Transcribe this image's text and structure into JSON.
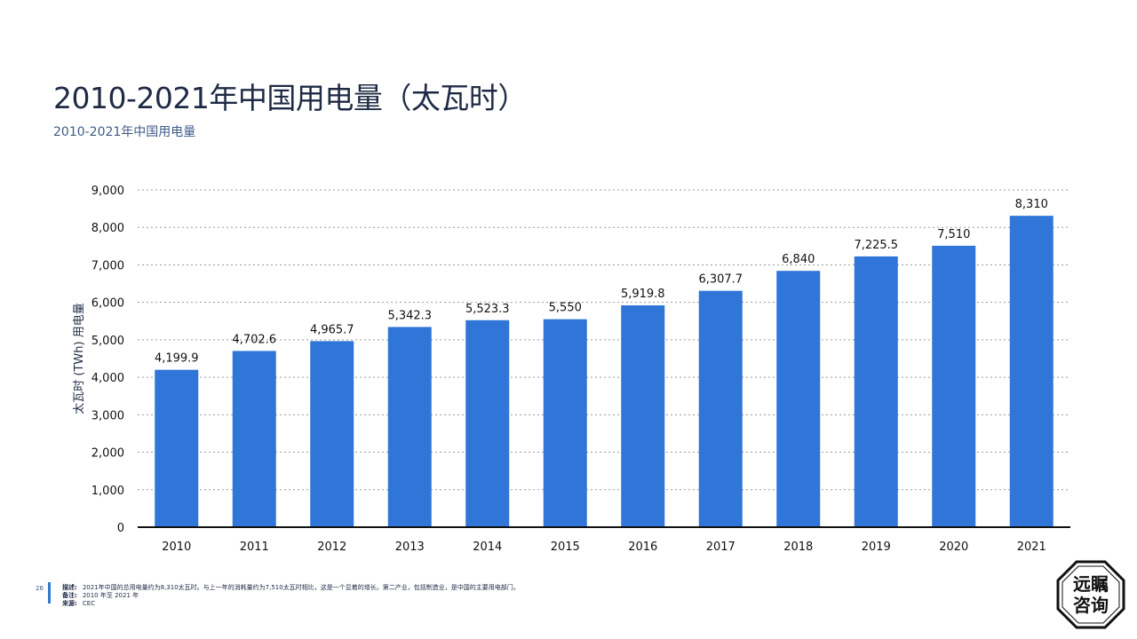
{
  "title": "2010-2021年中国用电量（太瓦时）",
  "subtitle": "2010-2021年中国用电量",
  "colors": {
    "bar": "#2f76d8",
    "text": "#1f2a44",
    "accent": "#3378d4"
  },
  "chart_data": {
    "type": "bar",
    "categories": [
      "2010",
      "2011",
      "2012",
      "2013",
      "2014",
      "2015",
      "2016",
      "2017",
      "2018",
      "2019",
      "2020",
      "2021"
    ],
    "values": [
      4199.9,
      4702.6,
      4965.7,
      5342.3,
      5523.3,
      5550,
      5919.8,
      6307.7,
      6840,
      7225.5,
      7510,
      8310
    ],
    "value_labels": [
      "4,199.9",
      "4,702.6",
      "4,965.7",
      "5,342.3",
      "5,523.3",
      "5,550",
      "5,919.8",
      "6,307.7",
      "6,840",
      "7,225.5",
      "7,510",
      "8,310"
    ],
    "ylabel": "太瓦时 (TWh) 用电量",
    "ylim": [
      0,
      9000
    ],
    "yticks": [
      0,
      1000,
      2000,
      3000,
      4000,
      5000,
      6000,
      7000,
      8000,
      9000
    ],
    "ytick_labels": [
      "0",
      "1,000",
      "2,000",
      "3,000",
      "4,000",
      "5,000",
      "6,000",
      "7,000",
      "8,000",
      "9,000"
    ],
    "grid": true
  },
  "footer": {
    "page_number": "26",
    "description_label": "描述:",
    "description": "2021年中国的总用电量约为8,310太瓦时。与上一年的消耗量约为7,510太瓦时相比，这是一个显着的增长。第二产业，包括制造业，是中国的主要用电部门。",
    "note_label": "备注:",
    "note": "2010 年至 2021 年",
    "source_label": "来源:",
    "source": "CEC"
  },
  "logo": {
    "line1": "远瞩",
    "line2": "咨询"
  }
}
